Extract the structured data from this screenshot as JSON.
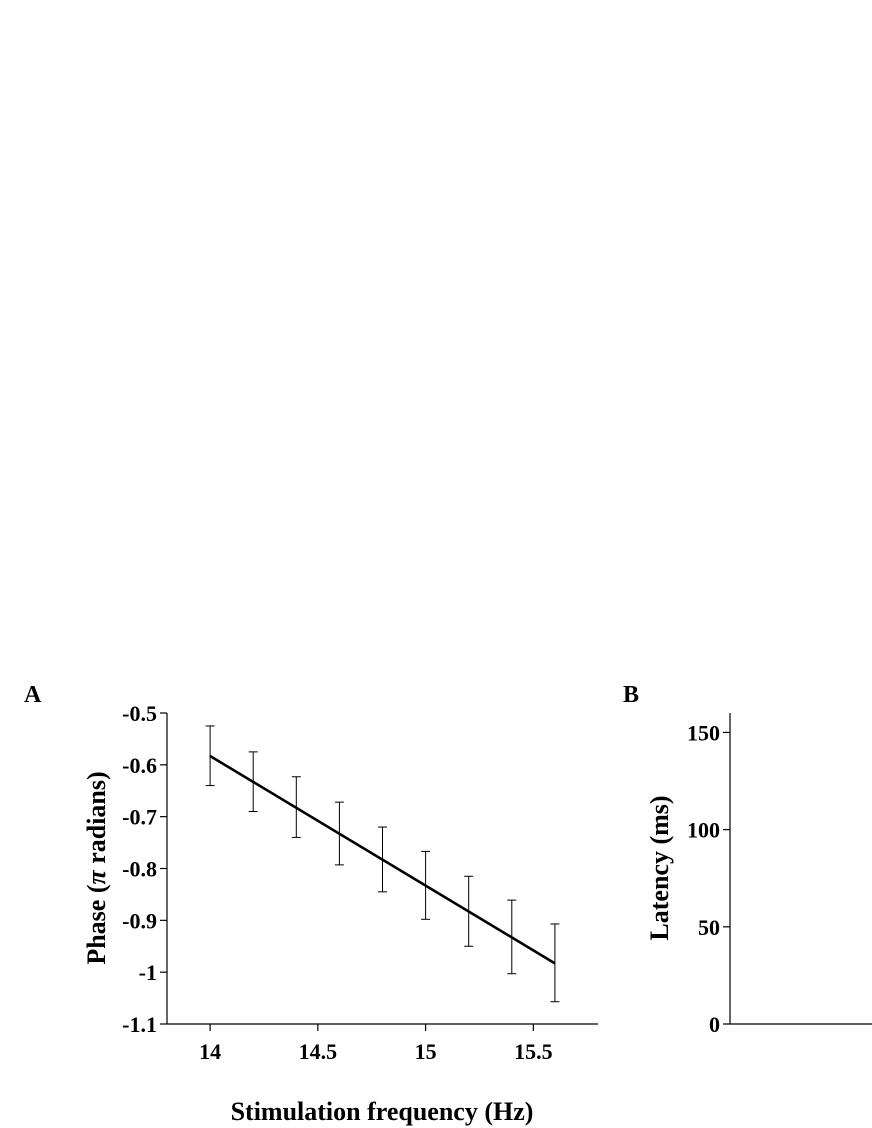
{
  "chart_data": [
    {
      "panel_label": "A",
      "type": "line",
      "xlabel": "Stimulation frequency (Hz)",
      "ylabel_prefix": "Phase (",
      "ylabel_symbol": "π",
      "ylabel_suffix": " radians)",
      "xlim": [
        13.8,
        15.8
      ],
      "ylim": [
        -1.1,
        -0.5
      ],
      "xticks": [
        14,
        14.5,
        15,
        15.5
      ],
      "xtick_labels": [
        "14",
        "14.5",
        "15",
        "15.5"
      ],
      "yticks": [
        -0.5,
        -0.6,
        -0.7,
        -0.8,
        -0.9,
        -1,
        -1.1
      ],
      "ytick_labels": [
        "-0.5",
        "-0.6",
        "-0.7",
        "-0.8",
        "-0.9",
        "-1",
        "-1.1"
      ],
      "line": {
        "x": [
          14,
          15.6
        ],
        "y": [
          -0.583,
          -0.983
        ]
      },
      "errorbars": {
        "x": [
          14,
          14.2,
          14.4,
          14.6,
          14.8,
          15,
          15.2,
          15.4,
          15.6
        ],
        "y": [
          -0.583,
          -0.633,
          -0.683,
          -0.733,
          -0.783,
          -0.833,
          -0.883,
          -0.933,
          -0.983
        ],
        "upper": [
          -0.525,
          -0.575,
          -0.623,
          -0.672,
          -0.72,
          -0.767,
          -0.815,
          -0.861,
          -0.907
        ],
        "lower": [
          -0.64,
          -0.69,
          -0.74,
          -0.793,
          -0.845,
          -0.898,
          -0.95,
          -1.003,
          -1.057
        ]
      },
      "grid": false
    },
    {
      "panel_label": "B",
      "type": "line",
      "xlabel": "",
      "ylabel": "Latency (ms)",
      "ylim": [
        0,
        160
      ],
      "yticks": [
        0,
        50,
        100,
        150
      ],
      "ytick_labels": [
        "0",
        "50",
        "100",
        "150"
      ],
      "grid": false
    }
  ]
}
